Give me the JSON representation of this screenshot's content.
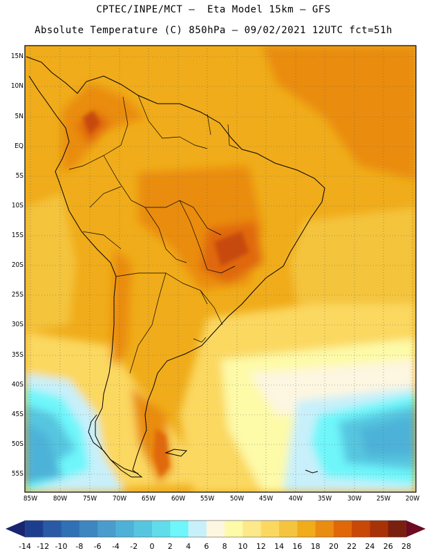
{
  "title_line1": "CPTEC/INPE/MCT –  Eta Model 15km – GFS",
  "title_line2": "Absolute Temperature (C) 850hPa – 09/02/2021 12UTC fct=51h",
  "lat_labels": [
    "15N",
    "10N",
    "5N",
    "EQ",
    "5S",
    "10S",
    "15S",
    "20S",
    "25S",
    "30S",
    "35S",
    "40S",
    "45S",
    "50S",
    "55S"
  ],
  "lon_labels": [
    "85W",
    "80W",
    "75W",
    "70W",
    "65W",
    "60W",
    "55W",
    "50W",
    "45W",
    "40W",
    "35W",
    "30W",
    "25W",
    "20W"
  ],
  "colorbar": {
    "labels": [
      "-14",
      "-12",
      "-10",
      "-8",
      "-6",
      "-4",
      "-2",
      "0",
      "2",
      "4",
      "6",
      "8",
      "10",
      "12",
      "14",
      "16",
      "18",
      "20",
      "22",
      "24",
      "26",
      "28"
    ],
    "colors": [
      "#1d3e8f",
      "#2a5aa6",
      "#3070b4",
      "#3d86c0",
      "#4a9ccc",
      "#4eb2d8",
      "#56c6e0",
      "#60dcea",
      "#6ef6fa",
      "#c8f0fa",
      "#fdf6e0",
      "#fdfaa8",
      "#fde88a",
      "#fbd860",
      "#f4c43e",
      "#f0ac1a",
      "#ea8c10",
      "#e06808",
      "#c84808",
      "#a83208",
      "#7a2010"
    ],
    "left_arrow": "#1a2570",
    "right_arrow": "#6e0a22"
  }
}
